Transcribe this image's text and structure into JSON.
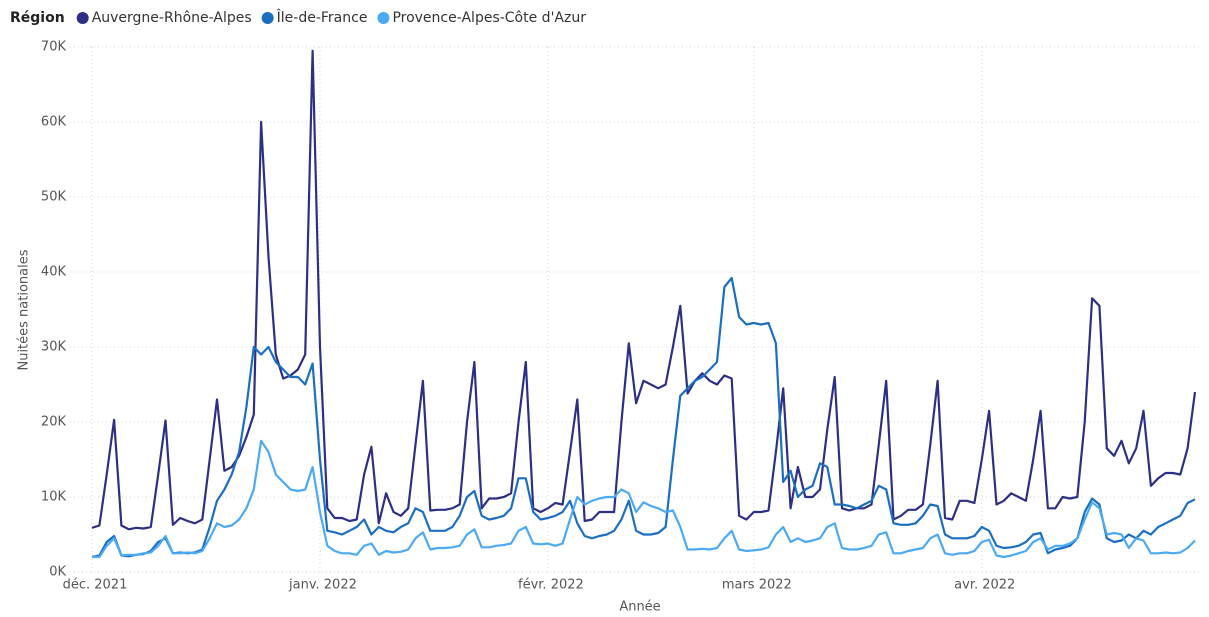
{
  "chart_data": {
    "type": "line",
    "legend_title": "Région",
    "y_label": "Nuitées nationales",
    "x_label": "Année",
    "categories": [
      "déc. 2021",
      null,
      null,
      null,
      null,
      null,
      null,
      null,
      null,
      null,
      null,
      null,
      null,
      null,
      null,
      null,
      null,
      null,
      null,
      null,
      null,
      null,
      null,
      null,
      null,
      null,
      null,
      null,
      null,
      null,
      null,
      "janv. 2022",
      null,
      null,
      null,
      null,
      null,
      null,
      null,
      null,
      null,
      null,
      null,
      null,
      null,
      null,
      null,
      null,
      null,
      null,
      null,
      null,
      null,
      null,
      null,
      null,
      null,
      null,
      null,
      null,
      null,
      null,
      "févr. 2022",
      null,
      null,
      null,
      null,
      null,
      null,
      null,
      null,
      null,
      null,
      null,
      null,
      null,
      null,
      null,
      null,
      null,
      null,
      null,
      null,
      null,
      null,
      null,
      null,
      null,
      null,
      null,
      "mars 2022",
      null,
      null,
      null,
      null,
      null,
      null,
      null,
      null,
      null,
      null,
      null,
      null,
      null,
      null,
      null,
      null,
      null,
      null,
      null,
      null,
      null,
      null,
      null,
      null,
      null,
      null,
      null,
      null,
      null,
      null,
      "avr. 2022",
      null,
      null,
      null,
      null,
      null,
      null,
      null,
      null,
      null,
      null,
      null,
      null,
      null,
      null,
      null,
      null,
      null,
      null,
      null,
      null,
      null,
      null,
      null,
      null,
      null,
      null,
      null,
      null,
      null
    ],
    "series": [
      {
        "name": "Auvergne-Rhône-Alpes",
        "color": "#2d2f86",
        "values": [
          5900,
          6200,
          13000,
          20300,
          6200,
          5700,
          5900,
          5800,
          6000,
          13000,
          20200,
          6300,
          7200,
          6800,
          6500,
          7000,
          15000,
          23000,
          13500,
          14000,
          15500,
          18000,
          21000,
          60000,
          42000,
          29000,
          25800,
          26200,
          27000,
          29000,
          69500,
          30000,
          8500,
          7200,
          7200,
          6800,
          7000,
          13000,
          16700,
          6500,
          10500,
          8000,
          7500,
          8500,
          17000,
          25500,
          8200,
          8300,
          8300,
          8500,
          9000,
          20000,
          28000,
          8500,
          9800,
          9800,
          10000,
          10500,
          20000,
          28000,
          8500,
          8000,
          8500,
          9200,
          9000,
          16000,
          23000,
          6800,
          7000,
          8000,
          8000,
          8000,
          20000,
          30500,
          22500,
          25500,
          25000,
          24500,
          25000,
          30000,
          35500,
          23800,
          25500,
          26500,
          25500,
          25000,
          26200,
          25800,
          7500,
          7000,
          8000,
          8000,
          8200,
          16000,
          24500,
          8500,
          14000,
          10000,
          10000,
          11000,
          19000,
          26000,
          8500,
          8200,
          8500,
          8500,
          9000,
          17000,
          25500,
          7000,
          7500,
          8300,
          8300,
          9000,
          17000,
          25500,
          7200,
          7000,
          9500,
          9500,
          9200,
          15000,
          21500,
          9000,
          9500,
          10500,
          10000,
          9500,
          15000,
          21500,
          8500,
          8500,
          10000,
          9800,
          10000,
          20000,
          36500,
          35500,
          16500,
          15500,
          17500,
          14500,
          16500,
          21500,
          11500,
          12500,
          13200,
          13200,
          13000,
          16500,
          24000
        ]
      },
      {
        "name": "Île-de-France",
        "color": "#1b6ec2",
        "values": [
          2000,
          2200,
          4000,
          4800,
          2200,
          2100,
          2300,
          2400,
          2800,
          4000,
          4500,
          2500,
          2600,
          2500,
          2600,
          3000,
          6000,
          9500,
          11000,
          13000,
          16000,
          22000,
          30000,
          29000,
          30000,
          28000,
          27000,
          26000,
          26000,
          25000,
          27800,
          15000,
          5500,
          5300,
          5000,
          5500,
          6000,
          7000,
          5000,
          6000,
          5500,
          5300,
          6000,
          6500,
          8500,
          8000,
          5500,
          5500,
          5500,
          6000,
          7500,
          10000,
          10800,
          7500,
          7000,
          7200,
          7500,
          8500,
          12500,
          12500,
          8000,
          7000,
          7200,
          7500,
          8000,
          9500,
          6500,
          4800,
          4500,
          4800,
          5000,
          5500,
          7000,
          9500,
          5500,
          5000,
          5000,
          5200,
          6000,
          15000,
          23500,
          24500,
          25500,
          26000,
          27000,
          28000,
          38000,
          39200,
          34000,
          33000,
          33200,
          33000,
          33200,
          30500,
          12000,
          13500,
          10000,
          11000,
          11500,
          14500,
          14000,
          9000,
          9000,
          8800,
          8500,
          9000,
          9500,
          11500,
          11000,
          6500,
          6300,
          6300,
          6500,
          7500,
          9000,
          8800,
          5000,
          4500,
          4500,
          4500,
          4800,
          6000,
          5500,
          3500,
          3200,
          3300,
          3500,
          4000,
          5000,
          5200,
          2500,
          3000,
          3200,
          3500,
          4500,
          8000,
          9800,
          9000,
          4500,
          4000,
          4200,
          5000,
          4500,
          5500,
          5000,
          6000,
          6500,
          7000,
          7500,
          9200,
          9700
        ]
      },
      {
        "name": "Provence-Alpes-Côte d'Azur",
        "color": "#4ba9f5",
        "values": [
          2000,
          2000,
          3500,
          4500,
          2200,
          2300,
          2300,
          2500,
          2600,
          3500,
          4800,
          2500,
          2500,
          2600,
          2500,
          2800,
          4500,
          6500,
          6000,
          6200,
          7000,
          8500,
          11000,
          17500,
          16000,
          13000,
          12000,
          11000,
          10800,
          11000,
          14000,
          8000,
          3500,
          2800,
          2500,
          2500,
          2300,
          3500,
          3800,
          2300,
          2800,
          2600,
          2700,
          3000,
          4500,
          5300,
          3000,
          3200,
          3200,
          3300,
          3500,
          5000,
          5700,
          3300,
          3300,
          3500,
          3600,
          3800,
          5500,
          6000,
          3800,
          3700,
          3800,
          3500,
          3800,
          7000,
          10000,
          9000,
          9500,
          9800,
          10000,
          10000,
          11000,
          10500,
          8000,
          9300,
          8800,
          8500,
          8000,
          8200,
          6000,
          3000,
          3000,
          3100,
          3000,
          3200,
          4500,
          5500,
          3000,
          2800,
          2900,
          3000,
          3300,
          5000,
          6000,
          4000,
          4500,
          4000,
          4200,
          4500,
          6000,
          6500,
          3200,
          3000,
          3000,
          3200,
          3500,
          5000,
          5300,
          2500,
          2500,
          2800,
          3000,
          3200,
          4500,
          5000,
          2500,
          2300,
          2500,
          2500,
          2800,
          4000,
          4300,
          2200,
          2000,
          2200,
          2500,
          2800,
          4000,
          4500,
          3000,
          3500,
          3500,
          3800,
          4500,
          7000,
          9300,
          8500,
          5000,
          5200,
          5000,
          3200,
          4500,
          4200,
          2500,
          2500,
          2600,
          2500,
          2600,
          3200,
          4200
        ]
      }
    ],
    "ylim": [
      0,
      70000
    ],
    "yticks": [
      {
        "value": 0,
        "label": "0K"
      },
      {
        "value": 10000,
        "label": "10K"
      },
      {
        "value": 20000,
        "label": "20K"
      },
      {
        "value": 30000,
        "label": "30K"
      },
      {
        "value": 40000,
        "label": "40K"
      },
      {
        "value": 50000,
        "label": "50K"
      },
      {
        "value": 60000,
        "label": "60K"
      },
      {
        "value": 70000,
        "label": "70K"
      }
    ],
    "grid": true
  }
}
